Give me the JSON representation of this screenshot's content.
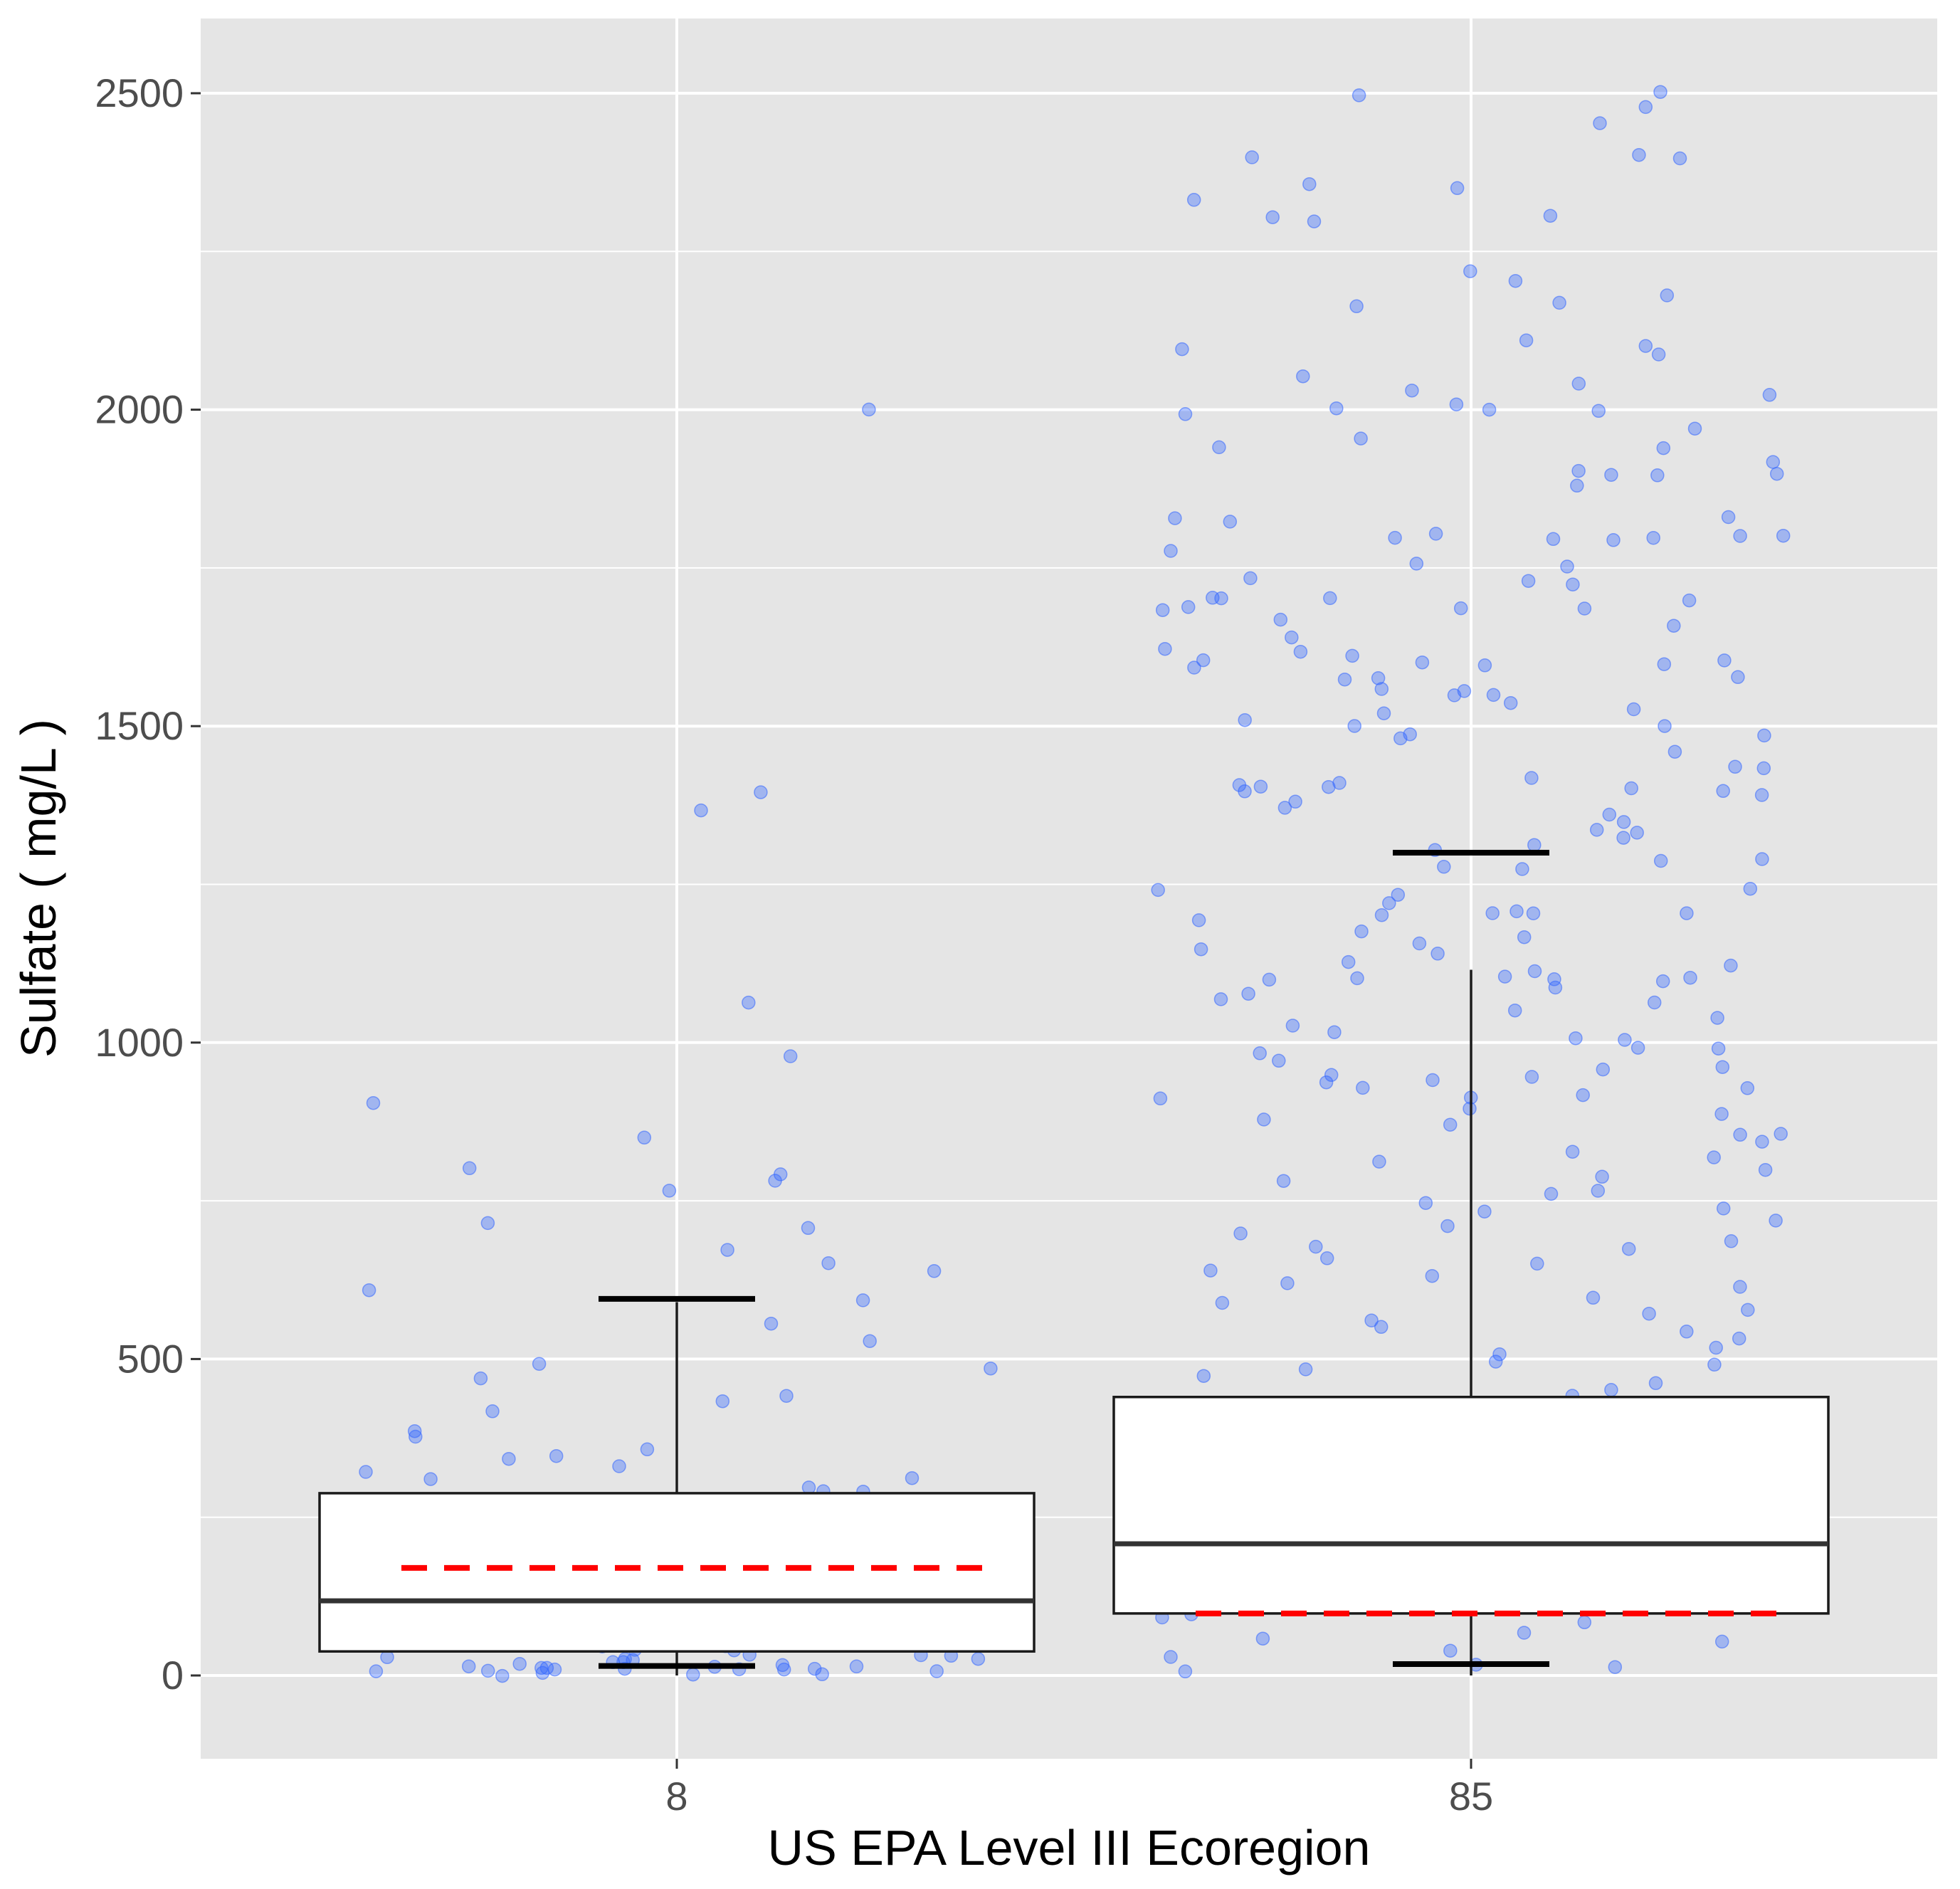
{
  "chart_data": {
    "type": "box",
    "xlabel": "US EPA Level III Ecoregion",
    "ylabel": "Sulfate ( mg/L )",
    "categories": [
      "8",
      "85"
    ],
    "ylim": [
      -120,
      2620
    ],
    "yticks": [
      0,
      500,
      1000,
      1500,
      2000,
      2500
    ],
    "grid": true,
    "colors": {
      "panel": "#e5e5e5",
      "grid": "#ffffff",
      "points": "#3366ff",
      "mean_line": "#ff0000",
      "box_fill": "#ffffff",
      "box_stroke": "#1a1a1a"
    },
    "boxes": [
      {
        "category": "8",
        "q1": 38,
        "median": 118,
        "q3": 288,
        "whisker_low": 0,
        "whisker_high": 590,
        "mean": 170,
        "limit_low": 15,
        "limit_high": 595,
        "points": [
          780,
          1400,
          980,
          805,
          710,
          650,
          590,
          670,
          420,
          315,
          310,
          290,
          270,
          240,
          230,
          205,
          190,
          175,
          170,
          150,
          140,
          130,
          120,
          110,
          95,
          80,
          70,
          45,
          30,
          20,
          15,
          12,
          10,
          8,
          2000,
          1370,
          1065,
          905,
          850,
          790,
          770,
          715,
          640,
          610,
          555,
          530,
          495,
          485,
          470,
          445,
          435,
          390,
          375,
          360,
          350,
          345,
          330,
          320,
          300,
          295,
          280,
          270,
          265,
          260,
          255,
          250,
          240,
          235,
          230,
          220,
          210,
          200,
          195,
          190,
          180,
          175,
          170,
          165,
          160,
          150,
          145,
          140,
          135,
          130,
          125,
          120,
          115,
          110,
          105,
          100,
          95,
          90,
          85,
          80,
          75,
          70,
          65,
          60,
          55,
          50,
          45,
          40,
          38,
          35,
          32,
          30,
          28,
          25,
          22,
          20,
          18,
          16,
          15,
          14,
          13,
          12,
          11,
          10,
          9,
          8,
          7,
          6,
          5,
          4,
          3
        ]
      },
      {
        "category": "85",
        "q1": 98,
        "median": 208,
        "q3": 440,
        "whisker_low": 0,
        "whisker_high": 1115,
        "mean": 98,
        "limit_low": 18,
        "limit_high": 1300,
        "points": [
          2500,
          2500,
          2480,
          2450,
          2400,
          2400,
          2395,
          2355,
          2350,
          2330,
          2310,
          2300,
          2300,
          2220,
          2200,
          2180,
          2170,
          2160,
          2110,
          2100,
          2100,
          2090,
          2050,
          2045,
          2030,
          2025,
          2010,
          2000,
          2000,
          2000,
          1990,
          1970,
          1950,
          1945,
          1940,
          1920,
          1900,
          1900,
          1900,
          1895,
          1880,
          1830,
          1830,
          1820,
          1800,
          1800,
          1800,
          1800,
          1800,
          1795,
          1790,
          1780,
          1760,
          1750,
          1730,
          1730,
          1720,
          1700,
          1700,
          1700,
          1695,
          1690,
          1690,
          1685,
          1680,
          1670,
          1660,
          1640,
          1620,
          1620,
          1610,
          1600,
          1600,
          1600,
          1600,
          1595,
          1590,
          1580,
          1580,
          1570,
          1560,
          1555,
          1550,
          1545,
          1540,
          1530,
          1520,
          1510,
          1500,
          1500,
          1490,
          1485,
          1480,
          1460,
          1440,
          1430,
          1420,
          1410,
          1410,
          1400,
          1400,
          1400,
          1400,
          1395,
          1390,
          1380,
          1370,
          1360,
          1350,
          1340,
          1330,
          1320,
          1310,
          1300,
          1290,
          1290,
          1280,
          1270,
          1240,
          1240,
          1230,
          1220,
          1210,
          1200,
          1200,
          1200,
          1200,
          1190,
          1180,
          1170,
          1160,
          1150,
          1140,
          1130,
          1120,
          1110,
          1100,
          1100,
          1100,
          1100,
          1100,
          1100,
          1090,
          1080,
          1070,
          1060,
          1050,
          1040,
          1030,
          1020,
          1010,
          1000,
          995,
          990,
          980,
          970,
          960,
          955,
          950,
          945,
          940,
          935,
          930,
          925,
          920,
          915,
          910,
          900,
          890,
          880,
          870,
          860,
          850,
          840,
          830,
          820,
          810,
          800,
          790,
          780,
          770,
          760,
          750,
          740,
          730,
          720,
          710,
          700,
          690,
          680,
          670,
          660,
          650,
          640,
          630,
          620,
          610,
          600,
          590,
          580,
          570,
          560,
          550,
          540,
          530,
          520,
          510,
          500,
          490,
          480,
          470,
          460,
          450,
          440,
          430,
          420,
          410,
          400,
          390,
          380,
          370,
          360,
          350,
          340,
          330,
          320,
          310,
          300,
          290,
          280,
          270,
          260,
          250,
          240,
          230,
          220,
          210,
          200,
          190,
          180,
          170,
          160,
          150,
          140,
          130,
          120,
          110,
          100,
          90,
          80,
          70,
          60,
          50,
          40,
          30,
          20,
          10,
          5
        ]
      }
    ]
  }
}
